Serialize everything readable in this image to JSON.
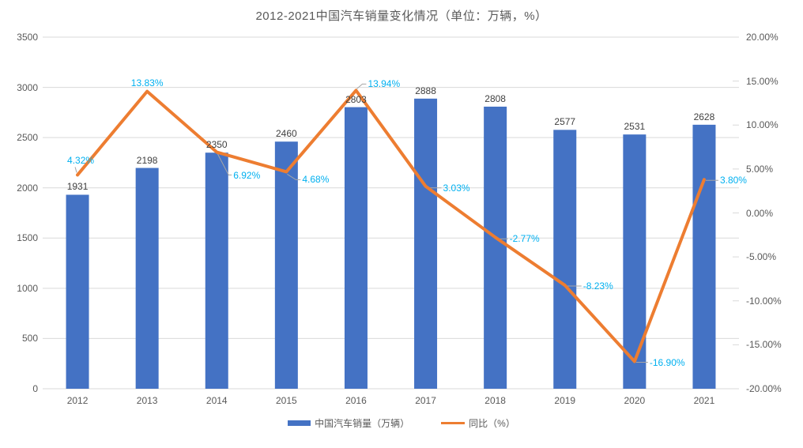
{
  "title": "2012-2021中国汽车销量变化情况（单位：万辆，%）",
  "chart_data": {
    "type": "combo-bar-line",
    "categories": [
      "2012",
      "2013",
      "2014",
      "2015",
      "2016",
      "2017",
      "2018",
      "2019",
      "2020",
      "2021"
    ],
    "series": [
      {
        "name": "中国汽车销量（万辆）",
        "type": "bar",
        "axis": "left",
        "color": "#4472C4",
        "values": [
          1931,
          2198,
          2350,
          2460,
          2803,
          2888,
          2808,
          2577,
          2531,
          2628
        ],
        "data_labels": [
          "1931",
          "2198",
          "2350",
          "2460",
          "2803",
          "2888",
          "2808",
          "2577",
          "2531",
          "2628"
        ]
      },
      {
        "name": "同比（%）",
        "type": "line",
        "axis": "right",
        "color": "#ED7D31",
        "label_color": "#00B0F0",
        "values": [
          4.32,
          13.83,
          6.92,
          4.68,
          13.94,
          3.03,
          -2.77,
          -8.23,
          -16.9,
          3.8
        ],
        "data_labels": [
          "4.32%",
          "13.83%",
          "6.92%",
          "4.68%",
          "13.94%",
          "3.03%",
          "-2.77%",
          "-8.23%",
          "-16.90%",
          "3.80%"
        ]
      }
    ],
    "left_axis": {
      "min": 0,
      "max": 3500,
      "step": 500,
      "tick_labels": [
        "3500",
        "3000",
        "2500",
        "2000",
        "1500",
        "1000",
        "500",
        "0"
      ]
    },
    "right_axis": {
      "min": -20,
      "max": 20,
      "step": 5,
      "tick_labels": [
        "20.00%",
        "15.00%",
        "10.00%",
        "5.00%",
        "0.00%",
        "-5.00%",
        "-10.00%",
        "-15.00%",
        "-20.00%"
      ]
    },
    "grid": true,
    "legend_position": "bottom",
    "colors": {
      "grid": "#D9D9D9",
      "tick": "#D9D9D9",
      "bar_label": "#404040",
      "axis_text": "#595959",
      "leader": "#A6A6A6",
      "background": "#FFFFFF"
    }
  }
}
